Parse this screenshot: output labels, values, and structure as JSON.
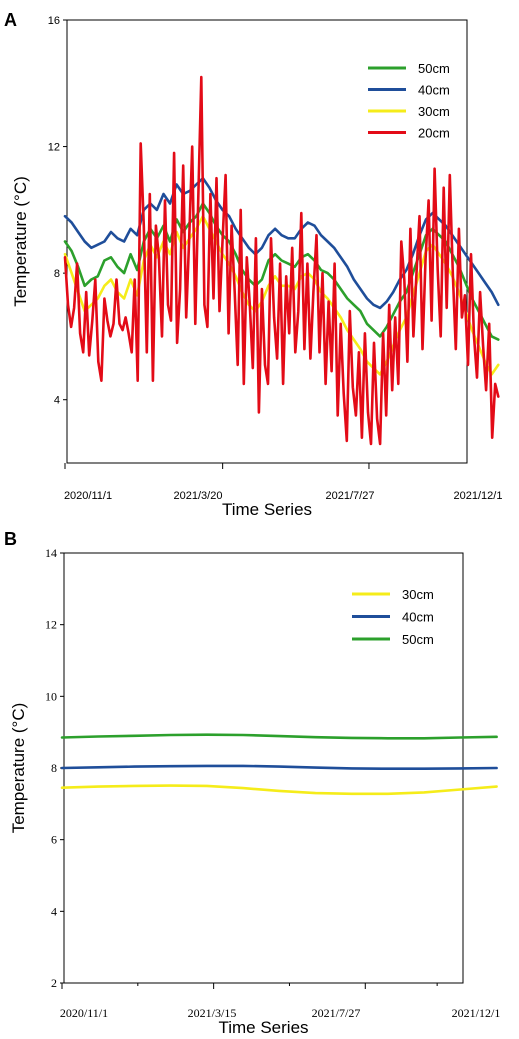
{
  "chart_data": [
    {
      "panel_label": "A",
      "type": "line",
      "xlabel": "Time Series",
      "ylabel": "Temperature (°C)",
      "ylim": [
        2,
        16
      ],
      "yticks": [
        4,
        8,
        12,
        16
      ],
      "xticks": [
        "2020/11/1",
        "2021/3/20",
        "2021/7/27",
        "2021/12/1"
      ],
      "x_range": [
        "2020/11/1",
        "2021/12/1"
      ],
      "legend_position": "top-right",
      "grid": false,
      "series": [
        {
          "name": "50cm",
          "color": "#2ca02c",
          "x_start": "2020/11/1",
          "x_end": "2021/11/18",
          "values": [
            9.0,
            8.7,
            8.2,
            7.6,
            7.8,
            7.9,
            8.4,
            8.5,
            8.2,
            8.0,
            8.6,
            8.1,
            9.0,
            9.4,
            9.1,
            9.5,
            9.0,
            9.7,
            9.3,
            9.6,
            9.8,
            10.2,
            9.9,
            9.5,
            9.2,
            9.0,
            8.6,
            8.1,
            7.8,
            7.6,
            7.8,
            8.4,
            8.6,
            8.4,
            8.3,
            8.2,
            8.5,
            8.6,
            8.4,
            8.1,
            8.0,
            7.8,
            7.5,
            7.2,
            7.0,
            6.8,
            6.4,
            6.2,
            6.0,
            6.3,
            6.7,
            7.1,
            7.4,
            8.0,
            8.6,
            9.2,
            9.4,
            9.2,
            9.0,
            8.6,
            8.2,
            7.7,
            7.2,
            6.8,
            6.4,
            6.0,
            5.9
          ]
        },
        {
          "name": "40cm",
          "color": "#1f4e9a",
          "x_start": "2020/11/1",
          "x_end": "2021/11/18",
          "values": [
            9.8,
            9.6,
            9.3,
            9.0,
            8.8,
            8.9,
            9.0,
            9.3,
            9.1,
            9.0,
            9.4,
            9.2,
            10.0,
            10.2,
            10.0,
            10.5,
            10.2,
            10.8,
            10.5,
            10.6,
            10.8,
            11.0,
            10.7,
            10.3,
            10.0,
            9.8,
            9.4,
            9.1,
            8.8,
            8.6,
            8.8,
            9.2,
            9.4,
            9.2,
            9.1,
            9.1,
            9.4,
            9.6,
            9.5,
            9.2,
            9.0,
            8.8,
            8.5,
            8.2,
            7.8,
            7.5,
            7.2,
            7.0,
            6.9,
            7.1,
            7.4,
            7.8,
            8.1,
            8.6,
            9.2,
            9.7,
            9.9,
            9.7,
            9.5,
            9.2,
            8.9,
            8.6,
            8.3,
            8.0,
            7.7,
            7.4,
            7.0
          ]
        },
        {
          "name": "30cm",
          "color": "#f5ec1a",
          "x_start": "2020/11/1",
          "x_end": "2021/11/18",
          "values": [
            8.6,
            8.0,
            7.4,
            6.8,
            7.0,
            7.2,
            7.6,
            7.8,
            7.4,
            7.2,
            7.8,
            7.3,
            8.4,
            8.9,
            8.5,
            9.0,
            8.6,
            9.3,
            8.8,
            9.1,
            9.4,
            9.8,
            9.4,
            9.0,
            8.6,
            8.3,
            7.9,
            7.4,
            7.0,
            6.8,
            7.1,
            7.6,
            7.9,
            7.6,
            7.6,
            7.5,
            7.9,
            8.0,
            7.8,
            7.4,
            7.2,
            6.9,
            6.6,
            6.2,
            5.9,
            5.6,
            5.2,
            5.0,
            4.8,
            5.2,
            5.7,
            6.2,
            6.6,
            7.3,
            8.0,
            8.7,
            8.9,
            8.6,
            8.3,
            7.9,
            7.4,
            6.8,
            6.2,
            5.7,
            5.2,
            4.8,
            5.1
          ]
        },
        {
          "name": "20cm",
          "color": "#e30b17",
          "x_start": "2020/11/1",
          "x_end": "2021/11/18",
          "values": [
            8.5,
            7.0,
            6.3,
            6.9,
            8.3,
            6.1,
            5.5,
            7.4,
            5.4,
            6.5,
            7.8,
            5.2,
            4.6,
            7.2,
            6.5,
            6.0,
            6.4,
            7.8,
            6.4,
            6.2,
            6.6,
            6.1,
            5.5,
            7.8,
            4.6,
            12.1,
            9.5,
            5.5,
            10.5,
            4.6,
            9.5,
            8.5,
            6.0,
            10.3,
            7.0,
            6.5,
            11.8,
            5.8,
            7.5,
            11.4,
            6.6,
            9.1,
            12.0,
            6.4,
            10.4,
            14.2,
            7.0,
            6.3,
            10.5,
            7.2,
            11.0,
            6.8,
            9.0,
            11.1,
            6.1,
            9.5,
            7.4,
            5.1,
            10.0,
            4.5,
            8.5,
            7.0,
            5.0,
            9.1,
            3.6,
            7.5,
            5.1,
            4.5,
            9.1,
            6.6,
            5.3,
            8.3,
            4.5,
            7.9,
            6.1,
            8.8,
            5.5,
            6.8,
            9.9,
            5.6,
            8.3,
            5.3,
            7.4,
            9.2,
            5.5,
            8.0,
            4.5,
            7.1,
            4.9,
            8.3,
            3.5,
            6.4,
            4.2,
            2.7,
            6.8,
            4.4,
            3.5,
            5.5,
            2.8,
            6.1,
            3.6,
            2.6,
            5.8,
            3.4,
            2.6,
            6.1,
            3.5,
            7.0,
            4.3,
            6.6,
            4.5,
            9.0,
            7.8,
            5.2,
            9.4,
            6.0,
            8.0,
            9.8,
            5.6,
            8.4,
            10.3,
            6.5,
            11.3,
            8.1,
            6.0,
            10.7,
            6.9,
            11.1,
            8.0,
            5.6,
            9.4,
            6.6,
            7.3,
            5.1,
            8.6,
            6.0,
            4.7,
            7.4,
            5.7,
            4.3,
            6.4,
            2.8,
            4.5,
            4.1
          ]
        }
      ]
    },
    {
      "panel_label": "B",
      "type": "line",
      "xlabel": "Time Series",
      "ylabel": "Temperature (°C)",
      "ylim": [
        2,
        14
      ],
      "yticks": [
        2,
        4,
        6,
        8,
        10,
        12,
        14
      ],
      "xticks": [
        "2020/11/1",
        "2021/3/15",
        "2021/7/27",
        "2021/12/1"
      ],
      "x_range": [
        "2020/11/1",
        "2021/12/1"
      ],
      "legend_position": "top-right",
      "grid": false,
      "series": [
        {
          "name": "30cm",
          "color": "#f5ec1a",
          "x_start": "2020/11/1",
          "x_end": "2021/11/20",
          "values": [
            7.45,
            7.48,
            7.5,
            7.51,
            7.5,
            7.44,
            7.36,
            7.3,
            7.28,
            7.28,
            7.32,
            7.4,
            7.48
          ]
        },
        {
          "name": "40cm",
          "color": "#1f4e9a",
          "x_start": "2020/11/1",
          "x_end": "2021/11/20",
          "values": [
            8.0,
            8.02,
            8.04,
            8.05,
            8.06,
            8.06,
            8.04,
            8.01,
            7.99,
            7.98,
            7.98,
            7.99,
            8.0
          ]
        },
        {
          "name": "50cm",
          "color": "#2ca02c",
          "x_start": "2020/11/1",
          "x_end": "2021/11/20",
          "values": [
            8.85,
            8.88,
            8.9,
            8.92,
            8.93,
            8.92,
            8.89,
            8.86,
            8.84,
            8.83,
            8.83,
            8.85,
            8.87
          ]
        }
      ]
    }
  ]
}
